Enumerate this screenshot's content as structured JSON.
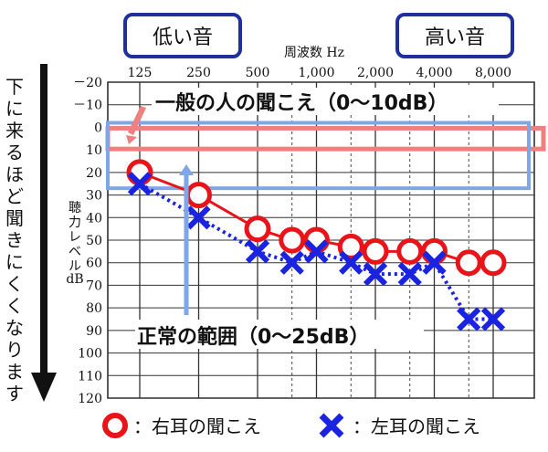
{
  "labels": {
    "low_tone": "低い音",
    "high_tone": "高い音",
    "frequency_title": "周波数 Hz",
    "side_note": "下に来るほど聞きにくくなります",
    "ylabel_line1": "聴",
    "ylabel_line2": "力",
    "ylabel_line3": "レ",
    "ylabel_line4": "ベ",
    "ylabel_line5": "ル",
    "ylabel_line6": "dB",
    "normal_person": "一般の人の聞こえ（0〜10dB）",
    "normal_range": "正常の範囲（0〜25dB）",
    "legend_right": "：右耳の聞こえ",
    "legend_left": "：左耳の聞こえ"
  },
  "colors": {
    "right_ear": "#e8141a",
    "left_ear": "#1a24e0",
    "box_outline": "#1f2f9e",
    "pink_line": "#f08080",
    "range_box": "#7ea6e8",
    "arrow": "#111111"
  },
  "chart_data": {
    "type": "line",
    "title": "",
    "xlabel": "周波数 Hz",
    "ylabel": "聴力レベル dB",
    "categories": [
      "125",
      "250",
      "500",
      "1,000",
      "2,000",
      "4,000",
      "8,000"
    ],
    "y_axis": {
      "min": -20,
      "max": 120,
      "step": 10,
      "inverted": true,
      "tick_labels": [
        "－20",
        "－10",
        "0",
        "10",
        "20",
        "30",
        "40",
        "50",
        "60",
        "70",
        "80",
        "90",
        "100",
        "110",
        "120"
      ]
    },
    "grid": true,
    "series": [
      {
        "name": "右耳の聞こえ",
        "marker": "circle",
        "points": [
          [
            125,
            20
          ],
          [
            250,
            30
          ],
          [
            500,
            45
          ],
          [
            750,
            50
          ],
          [
            1000,
            50
          ],
          [
            1500,
            53
          ],
          [
            2000,
            55
          ],
          [
            3000,
            55
          ],
          [
            4000,
            55
          ],
          [
            6000,
            60
          ],
          [
            8000,
            60
          ]
        ]
      },
      {
        "name": "左耳の聞こえ",
        "marker": "x",
        "points": [
          [
            125,
            25
          ],
          [
            250,
            40
          ],
          [
            500,
            55
          ],
          [
            750,
            60
          ],
          [
            1000,
            55
          ],
          [
            1500,
            60
          ],
          [
            2000,
            65
          ],
          [
            3000,
            65
          ],
          [
            4000,
            60
          ],
          [
            6000,
            85
          ],
          [
            8000,
            85
          ]
        ]
      }
    ],
    "annotations": [
      {
        "text": "一般の人の聞こえ（0〜10dB）",
        "range": [
          0,
          10
        ]
      },
      {
        "text": "正常の範囲（0〜25dB）",
        "range": [
          0,
          25
        ]
      }
    ]
  }
}
